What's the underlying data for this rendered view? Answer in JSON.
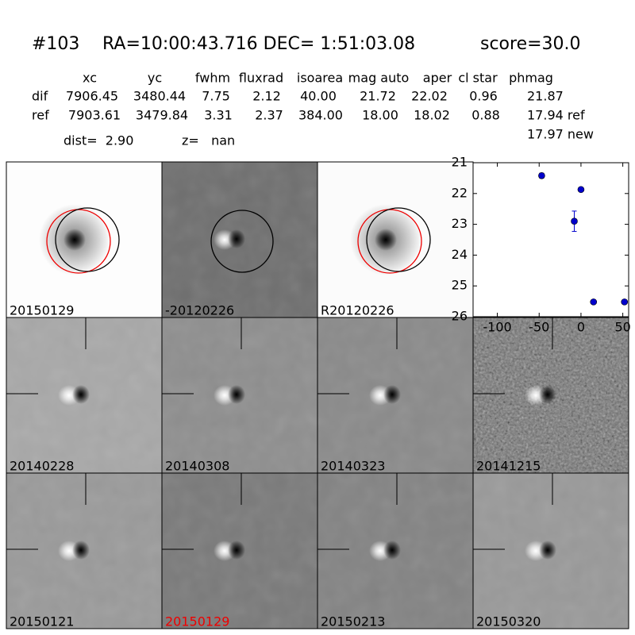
{
  "header": {
    "id": "#103",
    "coords": "RA=10:00:43.716 DEC= 1:51:03.08",
    "score": "score=30.0"
  },
  "table": {
    "columns": [
      "xc",
      "yc",
      "fwhm",
      "fluxrad",
      "isoarea",
      "mag auto",
      "aper",
      "cl star",
      "phmag"
    ],
    "rows": [
      {
        "label": "dif",
        "values": [
          "7906.45",
          "3480.44",
          "7.75",
          "2.12",
          "40.00",
          "21.72",
          "22.02",
          "0.96",
          "21.87"
        ]
      },
      {
        "label": "ref",
        "values": [
          "7903.61",
          "3479.84",
          "3.31",
          "2.37",
          "384.00",
          "18.00",
          "18.02",
          "0.88",
          "17.94 ref"
        ]
      }
    ],
    "extra": "17.97 new"
  },
  "dist": "dist=  2.90",
  "z": "z=   nan",
  "stamps": [
    "20150129",
    "-20120226",
    "R20120226",
    "20140228",
    "20140308",
    "20140323",
    "20141215",
    "20150121",
    "20150129",
    "20150213",
    "20150320"
  ],
  "chart_data": {
    "type": "scatter",
    "x": [
      -47,
      0,
      -8,
      15,
      52
    ],
    "values": [
      21.42,
      21.87,
      22.9,
      25.52,
      25.52
    ],
    "errors": [
      0.08,
      0.06,
      0.33,
      0.05,
      0.05
    ],
    "color": "#0000cc",
    "xlim": [
      -129,
      57
    ],
    "ylim": [
      26,
      21
    ],
    "xticks": [
      -100,
      -50,
      0,
      50
    ],
    "yticks": [
      21,
      22,
      23,
      24,
      25,
      26
    ]
  }
}
